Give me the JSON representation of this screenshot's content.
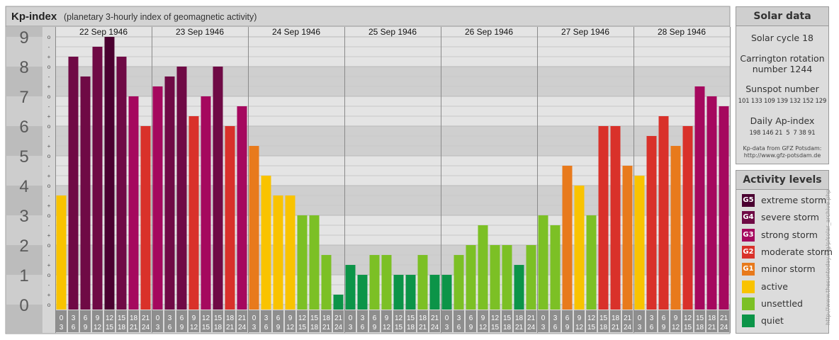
{
  "header": {
    "title": "Kp-index",
    "subtitle": "(planetary 3-hourly index of geomagnetic activity)"
  },
  "chart_data": {
    "type": "bar",
    "title": "Kp-index",
    "subtitle": "(planetary 3-hourly index of geomagnetic activity)",
    "ylim": [
      0,
      9
    ],
    "y_ticks": [
      "0",
      "1",
      "2",
      "3",
      "4",
      "5",
      "6",
      "7",
      "8",
      "9"
    ],
    "fine_ticks": [
      "+",
      "o",
      "-"
    ],
    "days": [
      "22 Sep 1946",
      "23 Sep 1946",
      "24 Sep 1946",
      "25 Sep 1946",
      "26 Sep 1946",
      "27 Sep 1946",
      "28 Sep 1946"
    ],
    "hour_labels": [
      [
        "0",
        "3"
      ],
      [
        "3",
        "6"
      ],
      [
        "6",
        "9"
      ],
      [
        "9",
        "12"
      ],
      [
        "12",
        "15"
      ],
      [
        "15",
        "18"
      ],
      [
        "18",
        "21"
      ],
      [
        "21",
        "24"
      ]
    ],
    "values": [
      3.667,
      8.333,
      7.667,
      8.667,
      9.0,
      8.333,
      7.0,
      6.0,
      7.333,
      7.667,
      8.0,
      6.333,
      7.0,
      8.0,
      6.0,
      6.667,
      5.333,
      4.333,
      3.667,
      3.667,
      3.0,
      3.0,
      1.667,
      0.333,
      1.333,
      1.0,
      1.667,
      1.667,
      1.0,
      1.0,
      1.667,
      1.0,
      1.0,
      1.667,
      2.0,
      2.667,
      2.0,
      2.0,
      1.333,
      2.0,
      3.0,
      2.667,
      4.667,
      4.0,
      3.0,
      6.0,
      6.0,
      4.667,
      4.333,
      5.667,
      6.333,
      5.333,
      6.0,
      7.333,
      7.0,
      6.667
    ],
    "grid": true
  },
  "solar": {
    "title": "Solar data",
    "cycle": "Solar cycle 18",
    "carrington_1": "Carrington rotation",
    "carrington_2": "number 1244",
    "sunspot_label": "Sunspot number",
    "sunspot_values": "101 133 109 139 132 152 129",
    "ap_label": "Daily Ap-index",
    "ap_values": "198 146 21  5  7 38 91",
    "credit_1": "Kp-data from GFZ Potsdam:",
    "credit_2": "http://www.gfz-potsdam.de"
  },
  "activity": {
    "title": "Activity levels",
    "levels": [
      {
        "code": "G5",
        "label": "extreme storm",
        "color": "#4a0030"
      },
      {
        "code": "G4",
        "label": "severe storm",
        "color": "#6f0a45"
      },
      {
        "code": "G3",
        "label": "strong storm",
        "color": "#a5085e"
      },
      {
        "code": "G2",
        "label": "moderate storm",
        "color": "#d9312a"
      },
      {
        "code": "G1",
        "label": "minor storm",
        "color": "#e87a1c"
      },
      {
        "code": "",
        "label": "active",
        "color": "#f9c300"
      },
      {
        "code": "",
        "label": "unsettled",
        "color": "#7cc025"
      },
      {
        "code": "",
        "label": "quiet",
        "color": "#0c9448"
      }
    ]
  },
  "side_credit": "http://www.thesuntoday.org/p/solar_archive.php",
  "colors": {
    "quiet": "#0c9448",
    "unsettled": "#7cc025",
    "active": "#f9c300",
    "g1": "#e87a1c",
    "g2": "#d9312a",
    "g3": "#a5085e",
    "g4": "#6f0a45",
    "g5": "#4a0030"
  }
}
